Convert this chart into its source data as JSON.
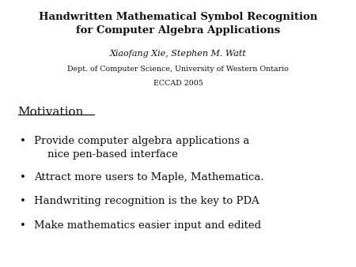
{
  "bg_color": "#ffffff",
  "title_line1": "Handwritten Mathematical Symbol Recognition",
  "title_line2": "for Computer Algebra Applications",
  "subtitle_italic": "Xiaofang Xie, Stephen M. Watt",
  "subtitle_dept": "Dept. of Computer Science, University of Western Ontario",
  "subtitle_conf": "ECCAD 2005",
  "section_heading": "Motivation",
  "bullets": [
    "Provide computer algebra applications a\n    nice pen-based interface",
    "Attract more users to Maple, Mathematica.",
    "Handwriting recognition is the key to PDA",
    "Make mathematics easier input and edited"
  ],
  "bullet_symbol": "•",
  "title_fontsize": 9.5,
  "subtitle_italic_fontsize": 8.0,
  "subtitle_small_fontsize": 6.8,
  "heading_fontsize": 11.0,
  "bullet_fontsize": 9.5
}
